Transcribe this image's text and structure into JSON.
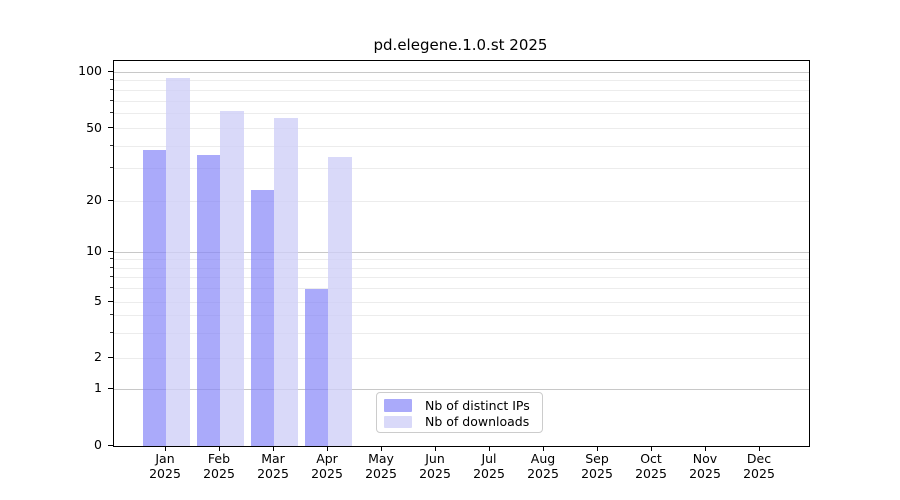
{
  "title": "pd.elegene.1.0.st 2025",
  "chart_data": {
    "type": "bar",
    "title": "pd.elegene.1.0.st 2025",
    "x_months": [
      "Jan",
      "Feb",
      "Mar",
      "Apr",
      "May",
      "Jun",
      "Jul",
      "Aug",
      "Sep",
      "Oct",
      "Nov",
      "Dec"
    ],
    "x_year": "2025",
    "series": [
      {
        "name": "Nb of distinct IPs",
        "color": "#8686f8",
        "alpha": 0.7,
        "values": [
          38,
          36,
          23,
          6,
          0,
          0,
          0,
          0,
          0,
          0,
          0,
          0
        ]
      },
      {
        "name": "Nb of downloads",
        "color": "#cecef7",
        "alpha": 0.78,
        "values": [
          93,
          62,
          57,
          35,
          0,
          0,
          0,
          0,
          0,
          0,
          0,
          0
        ]
      }
    ],
    "y_scale": "symlog",
    "y_tick_values": [
      0,
      1,
      2,
      5,
      10,
      20,
      50,
      100
    ],
    "y_minor_tick_values": [
      3,
      4,
      6,
      7,
      8,
      9,
      30,
      40,
      60,
      70,
      80,
      90
    ],
    "y_major_gridline_values": [
      1,
      10,
      100
    ],
    "y_minor_gridline_values": [
      2,
      3,
      4,
      5,
      6,
      7,
      8,
      9,
      20,
      30,
      40,
      50,
      60,
      70,
      80,
      90
    ],
    "ylim": [
      0,
      117
    ],
    "legend_position": "bottom-center",
    "grid": "on",
    "colors": {
      "major_gridline": "#c8c8c8",
      "minor_gridline": "#ececec",
      "axis": "#000000",
      "legend_border": "#cccccc"
    }
  }
}
